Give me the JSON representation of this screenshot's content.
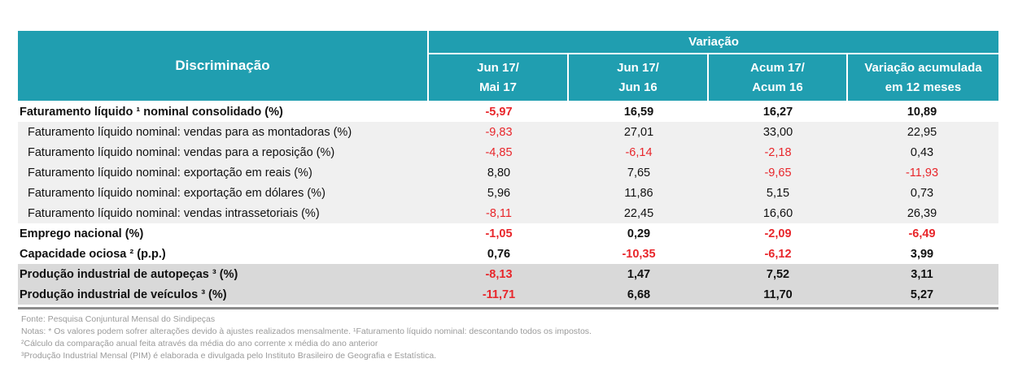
{
  "header": {
    "discriminacao": "Discriminação",
    "variacao": "Variação",
    "columns": [
      {
        "line1": "Jun 17/",
        "line2": "Mai 17"
      },
      {
        "line1": "Jun 17/",
        "line2": "Jun 16"
      },
      {
        "line1": "Acum 17/",
        "line2": "Acum 16"
      },
      {
        "line1": "Variação acumulada",
        "line2": "em 12 meses"
      }
    ]
  },
  "colors": {
    "header_bg": "#209eb0",
    "negative": "#e8262b",
    "text": "#111111"
  },
  "rows": [
    {
      "label": "Faturamento líquido ¹ nominal consolidado (%)",
      "values": [
        "-5,97",
        "16,59",
        "16,27",
        "10,89"
      ]
    },
    {
      "label": "Faturamento líquido nominal: vendas para as montadoras (%)",
      "values": [
        "-9,83",
        "27,01",
        "33,00",
        "22,95"
      ]
    },
    {
      "label": "Faturamento líquido nominal: vendas para a reposição (%)",
      "values": [
        "-4,85",
        "-6,14",
        "-2,18",
        "0,43"
      ]
    },
    {
      "label": "Faturamento líquido nominal: exportação em reais (%)",
      "values": [
        "8,80",
        "7,65",
        "-9,65",
        "-11,93"
      ]
    },
    {
      "label": "Faturamento líquido nominal: exportação em dólares (%)",
      "values": [
        "5,96",
        "11,86",
        "5,15",
        "0,73"
      ]
    },
    {
      "label": "Faturamento líquido nominal: vendas intrassetoriais (%)",
      "values": [
        "-8,11",
        "22,45",
        "16,60",
        "26,39"
      ]
    },
    {
      "label": "Emprego nacional (%)",
      "values": [
        "-1,05",
        "0,29",
        "-2,09",
        "-6,49"
      ]
    },
    {
      "label": "Capacidade ociosa ² (p.p.)",
      "values": [
        "0,76",
        "-10,35",
        "-6,12",
        "3,99"
      ]
    },
    {
      "label": "Produção industrial de autopeças ³  (%)",
      "values": [
        "-8,13",
        "1,47",
        "7,52",
        "3,11"
      ]
    },
    {
      "label": "Produção industrial de veículos ³  (%)",
      "values": [
        "-11,71",
        "6,68",
        "11,70",
        "5,27"
      ]
    }
  ],
  "notes": {
    "fonte": "Fonte: Pesquisa Conjuntural Mensal do Sindipeças",
    "notas": "Notas: * Os valores podem sofrer alterações devido à ajustes realizados mensalmente. ¹Faturamento líquido nominal: descontando todos os impostos.",
    "nota2": "²Cálculo da comparação anual feita através da média do ano corrente x média do ano anterior",
    "nota3": "³Produção Industrial Mensal (PIM) é elaborada e divulgada pelo Instituto Brasileiro de Geografia e Estatística."
  }
}
